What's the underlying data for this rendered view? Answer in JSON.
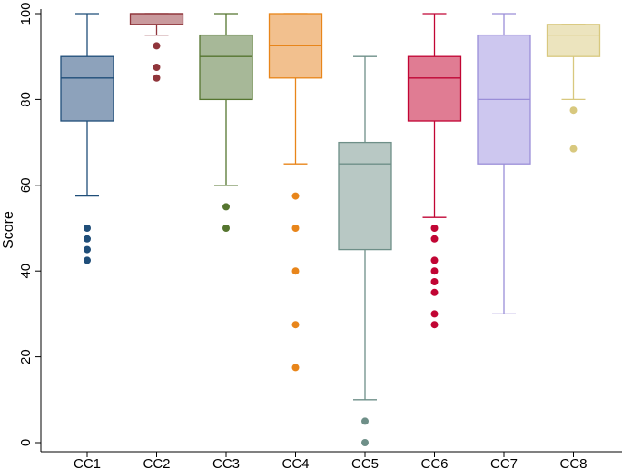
{
  "chart_data": {
    "type": "box",
    "title": "",
    "xlabel": "",
    "ylabel": "Score",
    "ylim": [
      0,
      100
    ],
    "yticks": [
      0,
      20,
      40,
      60,
      80,
      100
    ],
    "grid": false,
    "legend": "none",
    "categories": [
      "CC1",
      "CC2",
      "CC3",
      "CC4",
      "CC5",
      "CC6",
      "CC7",
      "CC8"
    ],
    "boxes": [
      {
        "name": "CC1",
        "color": "#1f4e79",
        "fill": "#8da2bb",
        "whisker_low": 57.5,
        "q1": 75,
        "median": 85,
        "q3": 90,
        "whisker_high": 100,
        "outliers": [
          50,
          47.5,
          45,
          42.5
        ]
      },
      {
        "name": "CC2",
        "color": "#90353b",
        "fill": "#c99a9d",
        "whisker_low": 95,
        "q1": 97.5,
        "median": 100,
        "q3": 100,
        "whisker_high": 100,
        "outliers": [
          92.5,
          87.5,
          85
        ]
      },
      {
        "name": "CC3",
        "color": "#55752f",
        "fill": "#a7b898",
        "whisker_low": 60,
        "q1": 80,
        "median": 90,
        "q3": 95,
        "whisker_high": 100,
        "outliers": [
          55,
          50
        ]
      },
      {
        "name": "CC4",
        "color": "#e8851a",
        "fill": "#f2c08e",
        "whisker_low": 65,
        "q1": 85,
        "median": 92.5,
        "q3": 100,
        "whisker_high": 100,
        "outliers": [
          57.5,
          50,
          40,
          27.5,
          17.5
        ]
      },
      {
        "name": "CC5",
        "color": "#6e8f88",
        "fill": "#b8c8c4",
        "whisker_low": 10,
        "q1": 45,
        "median": 65,
        "q3": 70,
        "whisker_high": 90,
        "outliers": [
          5,
          0
        ]
      },
      {
        "name": "CC6",
        "color": "#c10534",
        "fill": "#e07c93",
        "whisker_low": 52.5,
        "q1": 75,
        "median": 85,
        "q3": 90,
        "whisker_high": 100,
        "outliers": [
          50,
          47.5,
          42.5,
          40,
          37.5,
          35,
          30,
          27.5
        ]
      },
      {
        "name": "CC7",
        "color": "#9a8ed8",
        "fill": "#cdc7ef",
        "whisker_low": 30,
        "q1": 65,
        "median": 80,
        "q3": 95,
        "whisker_high": 100,
        "outliers": []
      },
      {
        "name": "CC8",
        "color": "#d8c87e",
        "fill": "#ece4be",
        "whisker_low": 80,
        "q1": 90,
        "median": 95,
        "q3": 97.5,
        "whisker_high": 97.5,
        "outliers": [
          77.5,
          68.5
        ]
      }
    ]
  }
}
